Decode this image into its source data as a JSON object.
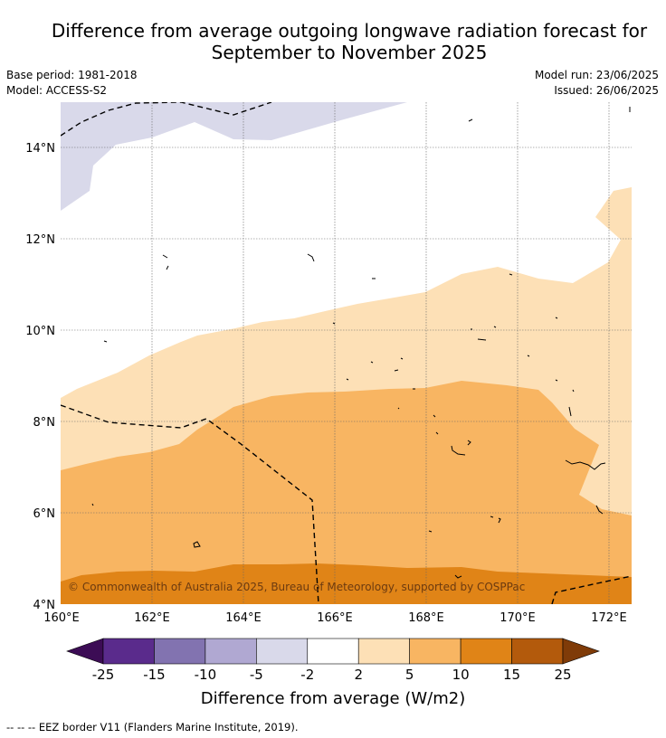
{
  "title_line1": "Difference from average outgoing longwave radiation forecast for",
  "title_line2": "September to November 2025",
  "base_period": "Base period: 1981-2018",
  "model": "Model: ACCESS-S2",
  "model_run": "Model run: 23/06/2025",
  "issued": "Issued: 26/06/2025",
  "lat_labels": [
    "14°N",
    "12°N",
    "10°N",
    "8°N",
    "6°N",
    "4°N"
  ],
  "lon_labels": [
    "160°E",
    "162°E",
    "164°E",
    "166°E",
    "168°E",
    "170°E",
    "172°E"
  ],
  "copyright": "© Commonwealth of Australia 2025, Bureau of Meteorology, supported by COSPPac",
  "colorbar": {
    "ticks": [
      "-25",
      "-15",
      "-10",
      "-5",
      "-2",
      "2",
      "5",
      "10",
      "15",
      "25"
    ],
    "colors": [
      "#3c0c55",
      "#5a2b8c",
      "#8273b0",
      "#b0a8d2",
      "#d9d9ea",
      "#ffffff",
      "#fde0b6",
      "#f8b562",
      "#e08417",
      "#b35a0c",
      "#7f3b08"
    ],
    "label": "Difference from average (W/m2)"
  },
  "legend_footer": "--  --  -- EEZ border V11 (Flanders Marine Institute, 2019)."
}
